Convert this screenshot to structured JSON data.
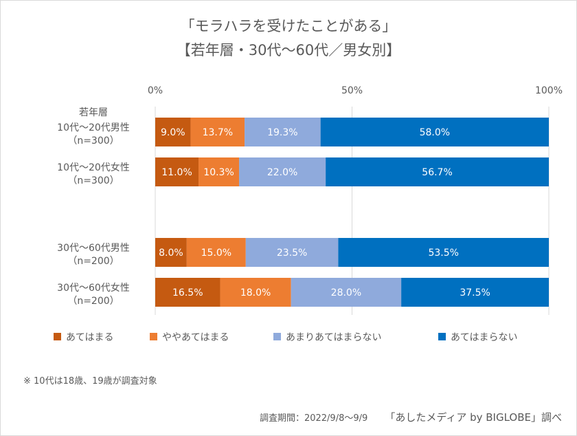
{
  "title_line1": "「モラハラを受けたことがある」",
  "title_line2": "【若年層・30代〜60代／男女別】",
  "note": "※ 10代は18歳、19歳が調査対象",
  "footer_period": "調査期間：2022/9/8〜9/9",
  "footer_source": "「あしたメディア by BIGLOBE」調べ",
  "chart_data": {
    "type": "bar",
    "orientation": "horizontal",
    "stacked": "100%",
    "title": "「モラハラを受けたことがある」【若年層・30代〜60代／男女別】",
    "xlim": [
      0,
      100
    ],
    "x_ticks": [
      "0%",
      "50%",
      "100%"
    ],
    "grid": true,
    "legend_position": "bottom",
    "group_label": "若年層",
    "categories": [
      [
        "10代〜20代男性",
        "（n=300）"
      ],
      [
        "10代〜20代女性",
        "（n=300）"
      ],
      [
        "30代〜60代男性",
        "（n=200）"
      ],
      [
        "30代〜60代女性",
        "（n=200）"
      ]
    ],
    "series": [
      {
        "name": "あてはまる",
        "color": "#c55a11",
        "values": [
          9.0,
          11.0,
          8.0,
          16.5
        ]
      },
      {
        "name": "ややあてはまる",
        "color": "#ed7d31",
        "values": [
          13.7,
          10.3,
          15.0,
          18.0
        ]
      },
      {
        "name": "あまりあてはまらない",
        "color": "#8faadc",
        "values": [
          19.3,
          22.0,
          23.5,
          28.0
        ]
      },
      {
        "name": "あてはまらない",
        "color": "#0070c0",
        "values": [
          58.0,
          56.7,
          53.5,
          37.5
        ]
      }
    ]
  }
}
